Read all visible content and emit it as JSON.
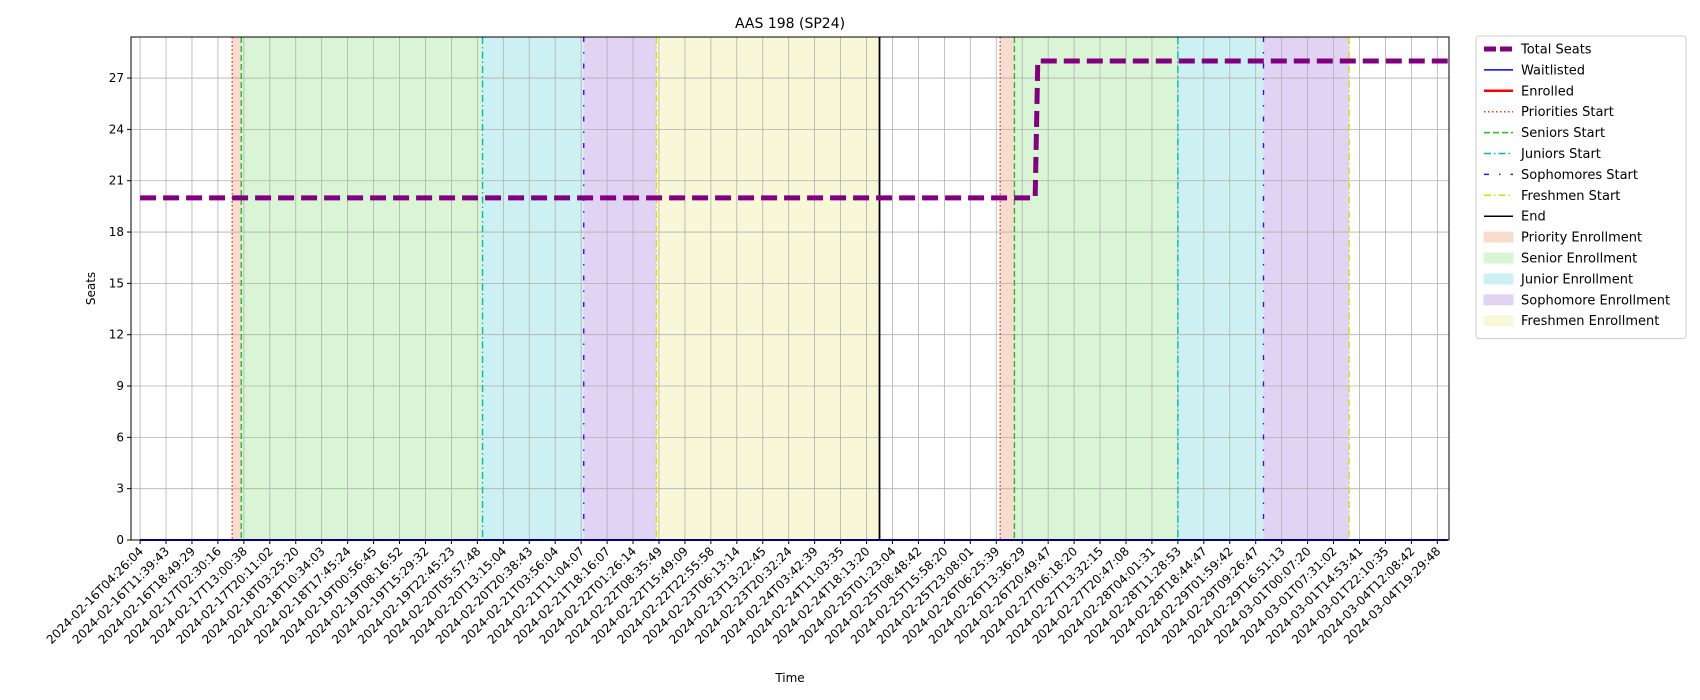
{
  "chart_data": {
    "type": "line",
    "title": "AAS 198 (SP24)",
    "xlabel": "Time",
    "ylabel": "Seats",
    "ylim": [
      0,
      29.4
    ],
    "y_ticks": [
      0,
      3,
      6,
      9,
      12,
      15,
      18,
      21,
      24,
      27
    ],
    "grid": true,
    "legend_position": "outside-right",
    "x_ticks": [
      "2024-02-16T04:26:04",
      "2024-02-16T11:39:43",
      "2024-02-16T18:49:29",
      "2024-02-17T02:30:16",
      "2024-02-17T13:00:38",
      "2024-02-17T20:11:02",
      "2024-02-18T03:25:20",
      "2024-02-18T10:34:03",
      "2024-02-18T17:45:24",
      "2024-02-19T00:56:45",
      "2024-02-19T08:16:52",
      "2024-02-19T15:29:32",
      "2024-02-19T22:45:23",
      "2024-02-20T05:57:48",
      "2024-02-20T13:15:04",
      "2024-02-20T20:38:43",
      "2024-02-21T03:56:04",
      "2024-02-21T11:04:07",
      "2024-02-21T18:16:07",
      "2024-02-22T01:26:14",
      "2024-02-22T08:35:49",
      "2024-02-22T15:49:09",
      "2024-02-22T22:55:58",
      "2024-02-23T06:13:14",
      "2024-02-23T13:22:45",
      "2024-02-23T20:32:24",
      "2024-02-24T03:42:39",
      "2024-02-24T11:03:35",
      "2024-02-24T18:13:20",
      "2024-02-25T01:23:04",
      "2024-02-25T08:48:42",
      "2024-02-25T15:58:20",
      "2024-02-25T23:08:01",
      "2024-02-26T06:25:39",
      "2024-02-26T13:36:29",
      "2024-02-26T20:49:47",
      "2024-02-27T06:18:20",
      "2024-02-27T13:32:15",
      "2024-02-27T20:47:08",
      "2024-02-28T04:01:31",
      "2024-02-28T11:28:53",
      "2024-02-28T18:44:47",
      "2024-02-29T01:59:42",
      "2024-02-29T09:26:47",
      "2024-02-29T16:51:13",
      "2024-03-01T00:07:20",
      "2024-03-01T07:31:02",
      "2024-03-01T14:53:41",
      "2024-03-01T22:10:35",
      "2024-03-04T12:08:42",
      "2024-03-04T19:29:48"
    ],
    "series": [
      {
        "name": "Total Seats",
        "color": "#800080",
        "style": "dashed-thick",
        "points": [
          [
            0,
            20
          ],
          [
            34.5,
            20
          ],
          [
            34.6,
            28
          ],
          [
            50.4,
            28
          ]
        ]
      },
      {
        "name": "Waitlisted",
        "color": "#0000ff",
        "style": "solid",
        "points": [
          [
            0,
            0
          ],
          [
            50.4,
            0
          ]
        ]
      },
      {
        "name": "Enrolled",
        "color": "#ff0000",
        "style": "solid",
        "points": [
          [
            0,
            0
          ],
          [
            50.4,
            0
          ]
        ]
      }
    ],
    "vertical_markers": [
      {
        "name": "Priorities Start",
        "color": "#ff3300",
        "style": "dotted",
        "x": [
          3.55,
          33.15
        ]
      },
      {
        "name": "Seniors Start",
        "color": "#22bb22",
        "style": "dashed",
        "x": [
          3.9,
          33.7
        ]
      },
      {
        "name": "Juniors Start",
        "color": "#00bbbb",
        "style": "dashdot",
        "x": [
          13.2,
          40.0
        ]
      },
      {
        "name": "Sophomores Start",
        "color": "#5500ee",
        "style": "loosely-dashdot",
        "x": [
          17.1,
          43.3
        ]
      },
      {
        "name": "Freshmen Start",
        "color": "#dddd00",
        "style": "dashdot",
        "x": [
          19.9,
          46.6
        ]
      },
      {
        "name": "End",
        "color": "#000000",
        "style": "solid",
        "x": [
          28.5
        ]
      }
    ],
    "spans": [
      {
        "name": "Priority Enrollment",
        "color": "#f9dcd0",
        "ranges": [
          [
            3.55,
            3.9
          ],
          [
            33.15,
            33.7
          ]
        ]
      },
      {
        "name": "Senior Enrollment",
        "color": "#daf5d5",
        "ranges": [
          [
            3.9,
            13.2
          ],
          [
            33.7,
            40.0
          ]
        ]
      },
      {
        "name": "Junior Enrollment",
        "color": "#cdf1f3",
        "ranges": [
          [
            13.2,
            17.1
          ],
          [
            40.0,
            43.3
          ]
        ]
      },
      {
        "name": "Sophomore Enrollment",
        "color": "#e1d3f4",
        "ranges": [
          [
            17.1,
            19.9
          ],
          [
            43.3,
            46.6
          ]
        ]
      },
      {
        "name": "Freshmen Enrollment",
        "color": "#f8f8d8",
        "ranges": [
          [
            19.9,
            28.5
          ]
        ]
      }
    ],
    "legend": [
      {
        "label": "Total Seats",
        "kind": "line",
        "color": "#800080",
        "style": "dashed-thick"
      },
      {
        "label": "Waitlisted",
        "kind": "line",
        "color": "#0000ff",
        "style": "solid"
      },
      {
        "label": "Enrolled",
        "kind": "line",
        "color": "#ff0000",
        "style": "solid-thick"
      },
      {
        "label": "Priorities Start",
        "kind": "line",
        "color": "#ff3300",
        "style": "dotted"
      },
      {
        "label": "Seniors Start",
        "kind": "line",
        "color": "#22bb22",
        "style": "dashed"
      },
      {
        "label": "Juniors Start",
        "kind": "line",
        "color": "#00bbbb",
        "style": "dashdot"
      },
      {
        "label": "Sophomores Start",
        "kind": "line",
        "color": "#5500ee",
        "style": "loosely-dashdot"
      },
      {
        "label": "Freshmen Start",
        "kind": "line",
        "color": "#dddd00",
        "style": "dashdot"
      },
      {
        "label": "End",
        "kind": "line",
        "color": "#000000",
        "style": "solid"
      },
      {
        "label": "Priority Enrollment",
        "kind": "patch",
        "color": "#f9dcd0"
      },
      {
        "label": "Senior Enrollment",
        "kind": "patch",
        "color": "#daf5d5"
      },
      {
        "label": "Junior Enrollment",
        "kind": "patch",
        "color": "#cdf1f3"
      },
      {
        "label": "Sophomore Enrollment",
        "kind": "patch",
        "color": "#e1d3f4"
      },
      {
        "label": "Freshmen Enrollment",
        "kind": "patch",
        "color": "#f8f8d8"
      }
    ]
  }
}
